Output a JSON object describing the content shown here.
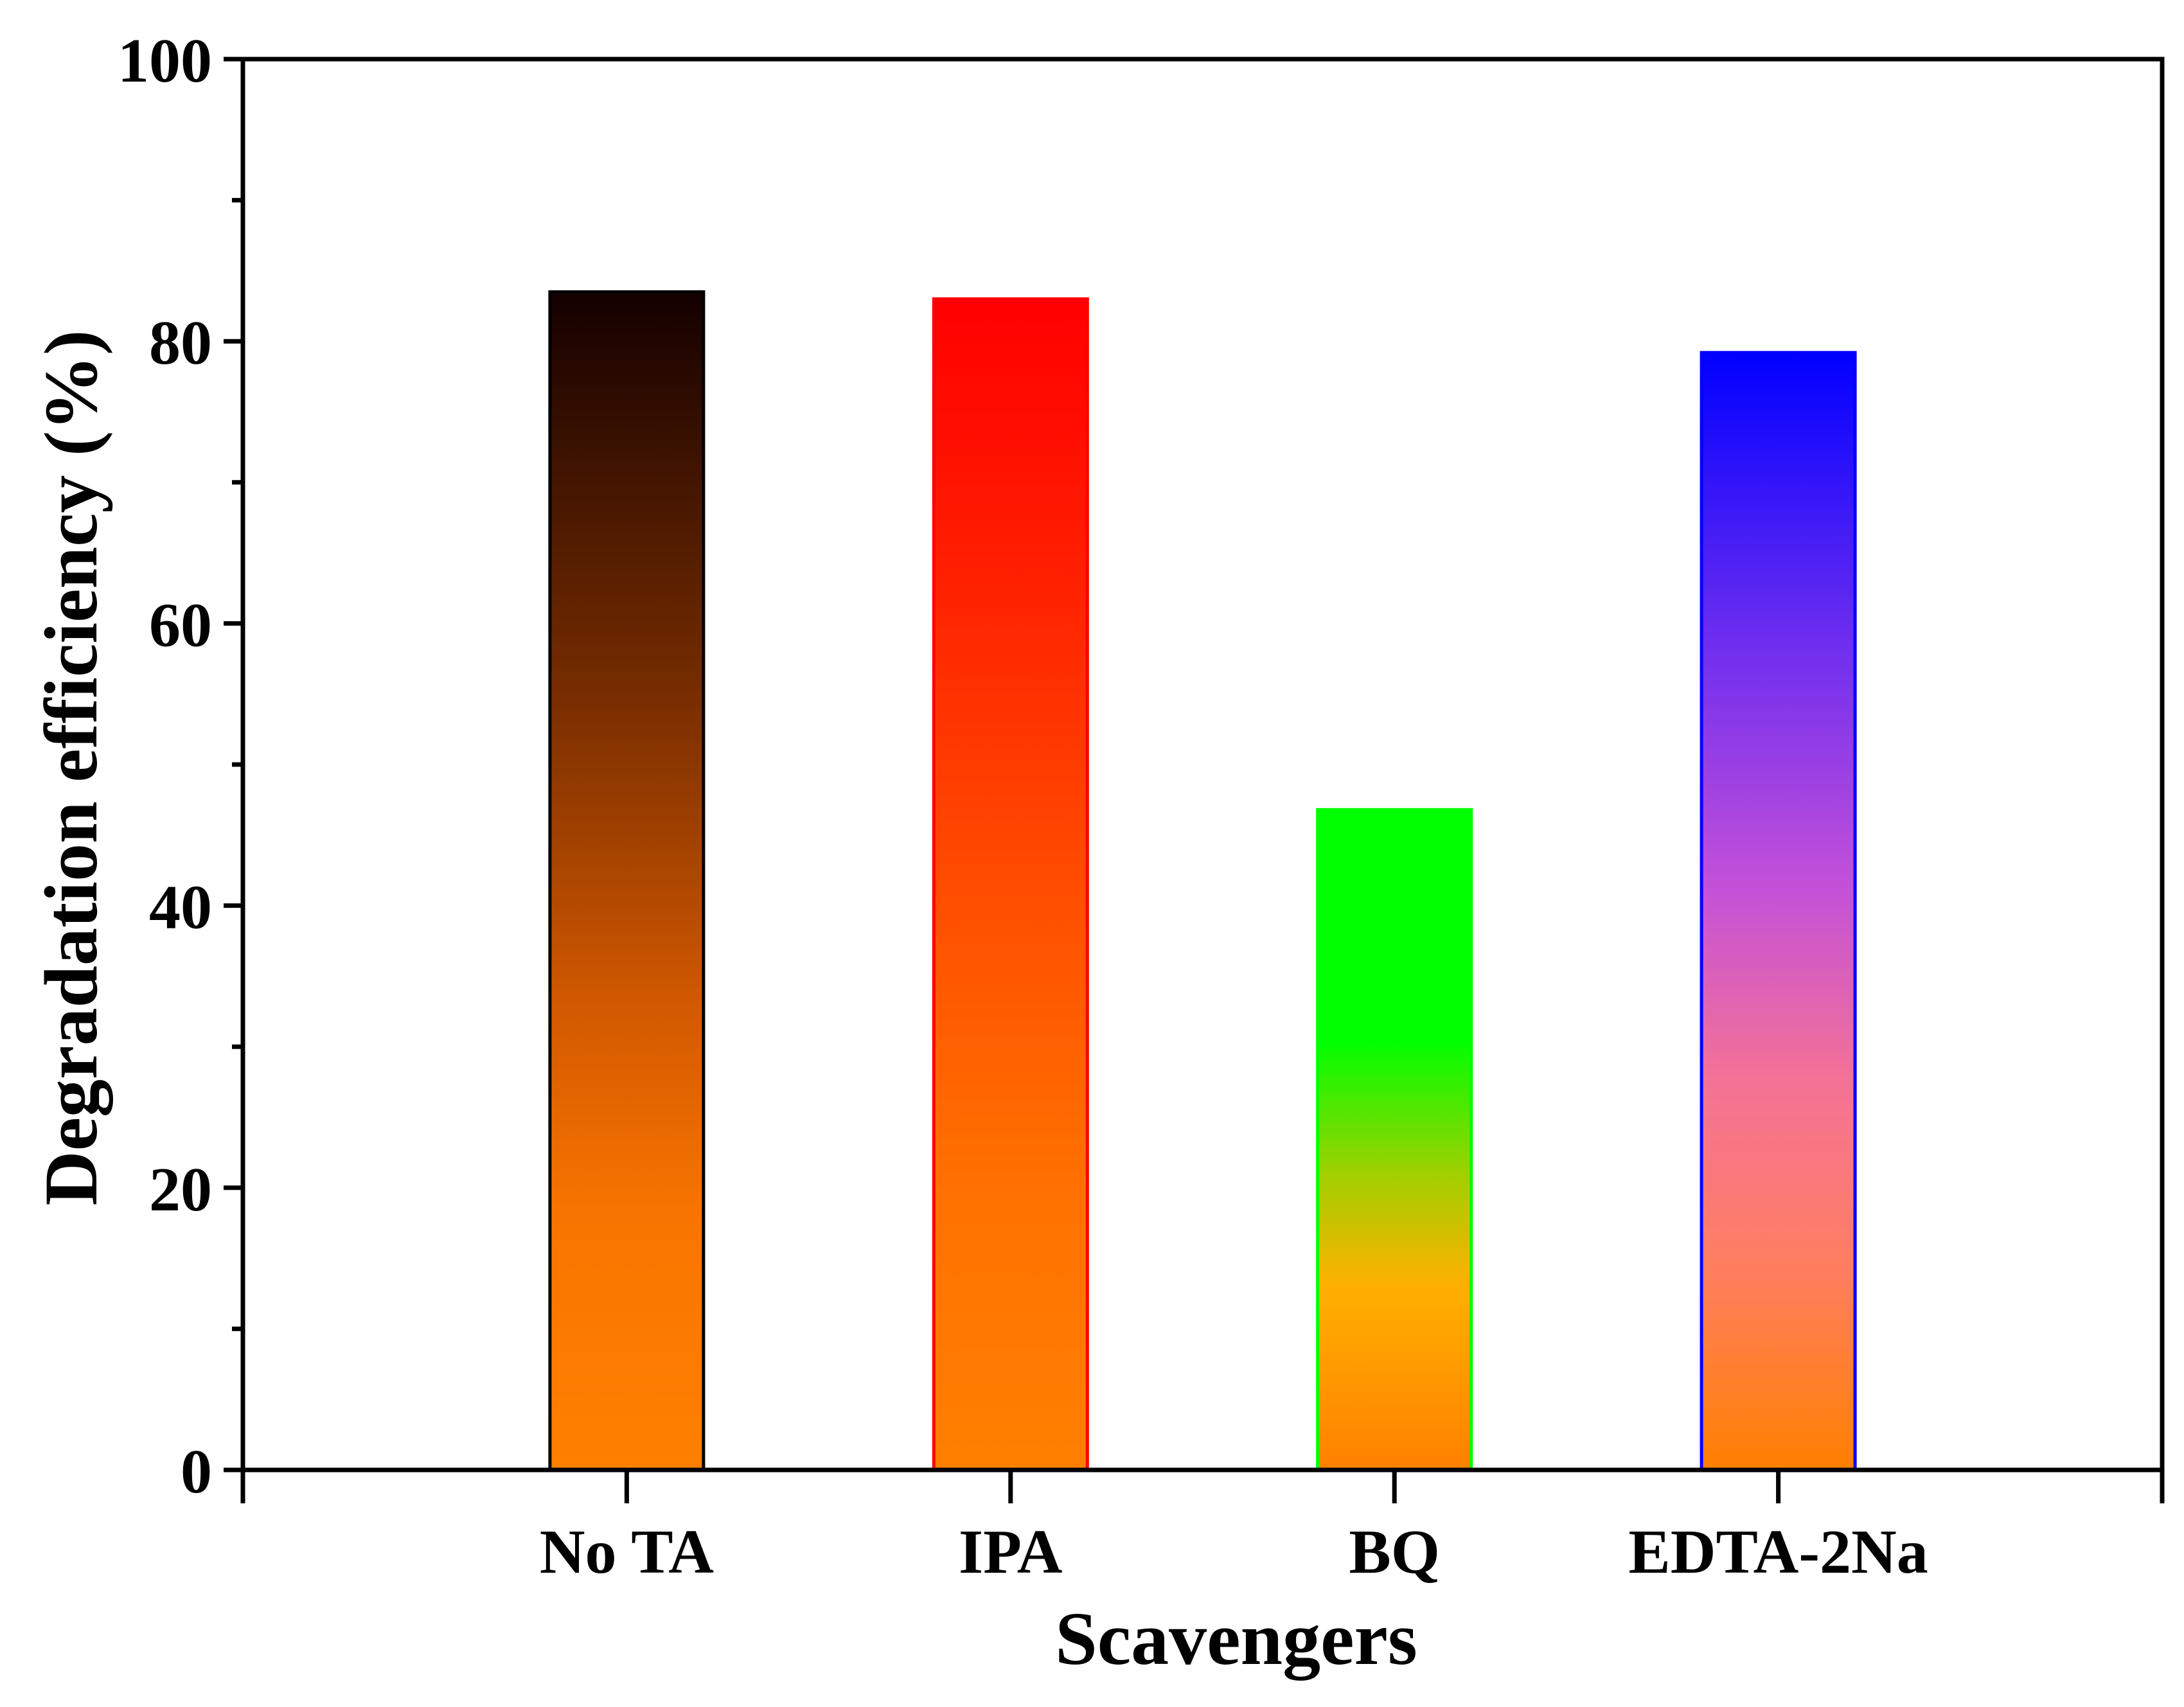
{
  "chart_data": {
    "type": "bar",
    "title": "",
    "xlabel": "Scavengers",
    "ylabel": "Degradation efficiency (%)",
    "ylim": [
      0,
      100
    ],
    "yticks": [
      0,
      20,
      40,
      60,
      80,
      100
    ],
    "yminor_step": 10,
    "xlim": [
      0,
      5
    ],
    "categories": [
      "No TA",
      "IPA",
      "BQ",
      "EDTA-2Na"
    ],
    "values": [
      83.5,
      83.0,
      46.8,
      79.2
    ],
    "bar_width": 0.4,
    "grid": false,
    "legend": "none",
    "bar_styles": [
      {
        "stroke": "#000000",
        "gradient": [
          {
            "pos": 0.0,
            "color": "#140000"
          },
          {
            "pos": 0.35,
            "color": "#7a2e00"
          },
          {
            "pos": 0.6,
            "color": "#d05800"
          },
          {
            "pos": 0.78,
            "color": "#f87400"
          },
          {
            "pos": 1.0,
            "color": "#ff8000"
          }
        ]
      },
      {
        "stroke": "#ff0000",
        "gradient": [
          {
            "pos": 0.0,
            "color": "#ff0000"
          },
          {
            "pos": 0.2,
            "color": "#ff1a00"
          },
          {
            "pos": 0.5,
            "color": "#ff4c00"
          },
          {
            "pos": 0.75,
            "color": "#ff7000"
          },
          {
            "pos": 1.0,
            "color": "#ff8000"
          }
        ]
      },
      {
        "stroke": "#00ff00",
        "gradient": [
          {
            "pos": 0.0,
            "color": "#00ff00"
          },
          {
            "pos": 0.35,
            "color": "#00ff00"
          },
          {
            "pos": 0.55,
            "color": "#9fd000"
          },
          {
            "pos": 0.72,
            "color": "#ffb000"
          },
          {
            "pos": 1.0,
            "color": "#ff8000"
          }
        ]
      },
      {
        "stroke": "#0000ff",
        "gradient": [
          {
            "pos": 0.0,
            "color": "#0000ff"
          },
          {
            "pos": 0.25,
            "color": "#6a2cf0"
          },
          {
            "pos": 0.48,
            "color": "#c451d8"
          },
          {
            "pos": 0.65,
            "color": "#f47296"
          },
          {
            "pos": 0.82,
            "color": "#ff7e60"
          },
          {
            "pos": 1.0,
            "color": "#ff8000"
          }
        ]
      }
    ]
  }
}
